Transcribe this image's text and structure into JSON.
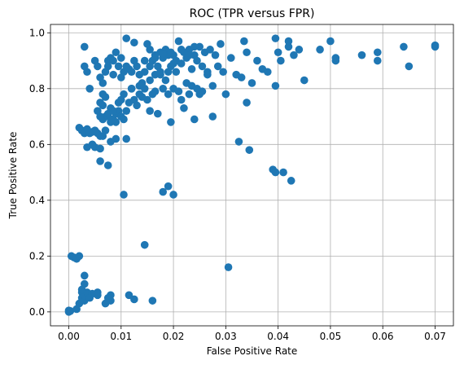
{
  "chart_data": {
    "type": "scatter",
    "title": "ROC (TPR versus FPR)",
    "xlabel": "False Positive Rate",
    "ylabel": "True Positive Rate",
    "xlim": [
      -0.0035,
      0.0735
    ],
    "ylim": [
      -0.05,
      1.03
    ],
    "xticks": [
      0.0,
      0.01,
      0.02,
      0.03,
      0.04,
      0.05,
      0.06,
      0.07
    ],
    "xtick_labels": [
      "0.00",
      "0.01",
      "0.02",
      "0.03",
      "0.04",
      "0.05",
      "0.06",
      "0.07"
    ],
    "yticks": [
      0.0,
      0.2,
      0.4,
      0.6,
      0.8,
      1.0
    ],
    "ytick_labels": [
      "0.0",
      "0.2",
      "0.4",
      "0.6",
      "0.8",
      "1.0"
    ],
    "grid": true,
    "marker_color": "#1f77b4",
    "points": [
      [
        0.0,
        0.005
      ],
      [
        0.0,
        0.0
      ],
      [
        0.0003,
        0.003
      ],
      [
        0.0005,
        0.2
      ],
      [
        0.001,
        0.195
      ],
      [
        0.0015,
        0.19
      ],
      [
        0.002,
        0.2
      ],
      [
        0.0015,
        0.01
      ],
      [
        0.002,
        0.03
      ],
      [
        0.0025,
        0.05
      ],
      [
        0.0025,
        0.07
      ],
      [
        0.003,
        0.04
      ],
      [
        0.003,
        0.06
      ],
      [
        0.0035,
        0.07
      ],
      [
        0.004,
        0.05
      ],
      [
        0.0045,
        0.065
      ],
      [
        0.0055,
        0.06
      ],
      [
        0.0055,
        0.07
      ],
      [
        0.007,
        0.03
      ],
      [
        0.008,
        0.04
      ],
      [
        0.008,
        0.06
      ],
      [
        0.0075,
        0.05
      ],
      [
        0.003,
        0.1
      ],
      [
        0.003,
        0.13
      ],
      [
        0.0025,
        0.08
      ],
      [
        0.0115,
        0.06
      ],
      [
        0.0125,
        0.045
      ],
      [
        0.016,
        0.04
      ],
      [
        0.0145,
        0.24
      ],
      [
        0.0305,
        0.16
      ],
      [
        0.002,
        0.66
      ],
      [
        0.0025,
        0.65
      ],
      [
        0.003,
        0.64
      ],
      [
        0.0035,
        0.655
      ],
      [
        0.0035,
        0.59
      ],
      [
        0.0045,
        0.645
      ],
      [
        0.005,
        0.59
      ],
      [
        0.0055,
        0.64
      ],
      [
        0.006,
        0.63
      ],
      [
        0.006,
        0.585
      ],
      [
        0.0065,
        0.63
      ],
      [
        0.0075,
        0.525
      ],
      [
        0.008,
        0.61
      ],
      [
        0.009,
        0.62
      ],
      [
        0.009,
        0.68
      ],
      [
        0.006,
        0.54
      ],
      [
        0.0065,
        0.69
      ],
      [
        0.007,
        0.7
      ],
      [
        0.007,
        0.65
      ],
      [
        0.0075,
        0.7
      ],
      [
        0.008,
        0.68
      ],
      [
        0.008,
        0.73
      ],
      [
        0.0085,
        0.69
      ],
      [
        0.009,
        0.71
      ],
      [
        0.0095,
        0.72
      ],
      [
        0.01,
        0.7
      ],
      [
        0.0105,
        0.69
      ],
      [
        0.011,
        0.62
      ],
      [
        0.006,
        0.7
      ],
      [
        0.0065,
        0.74
      ],
      [
        0.007,
        0.77
      ],
      [
        0.0075,
        0.71
      ],
      [
        0.0085,
        0.72
      ],
      [
        0.0095,
        0.75
      ],
      [
        0.01,
        0.76
      ],
      [
        0.0105,
        0.78
      ],
      [
        0.011,
        0.72
      ],
      [
        0.0115,
        0.75
      ],
      [
        0.012,
        0.8
      ],
      [
        0.0125,
        0.76
      ],
      [
        0.013,
        0.74
      ],
      [
        0.0135,
        0.78
      ],
      [
        0.014,
        0.77
      ],
      [
        0.0145,
        0.8
      ],
      [
        0.015,
        0.76
      ],
      [
        0.0155,
        0.72
      ],
      [
        0.016,
        0.78
      ],
      [
        0.0165,
        0.79
      ],
      [
        0.017,
        0.71
      ],
      [
        0.018,
        0.8
      ],
      [
        0.019,
        0.78
      ],
      [
        0.0195,
        0.68
      ],
      [
        0.02,
        0.8
      ],
      [
        0.021,
        0.79
      ],
      [
        0.0215,
        0.76
      ],
      [
        0.022,
        0.73
      ],
      [
        0.023,
        0.78
      ],
      [
        0.024,
        0.69
      ],
      [
        0.025,
        0.78
      ],
      [
        0.0275,
        0.7
      ],
      [
        0.003,
        0.88
      ],
      [
        0.0035,
        0.86
      ],
      [
        0.004,
        0.8
      ],
      [
        0.005,
        0.9
      ],
      [
        0.0055,
        0.88
      ],
      [
        0.006,
        0.84
      ],
      [
        0.0065,
        0.82
      ],
      [
        0.007,
        0.86
      ],
      [
        0.0075,
        0.9
      ],
      [
        0.008,
        0.91
      ],
      [
        0.0085,
        0.85
      ],
      [
        0.009,
        0.93
      ],
      [
        0.0095,
        0.88
      ],
      [
        0.01,
        0.84
      ],
      [
        0.0105,
        0.86
      ],
      [
        0.011,
        0.98
      ],
      [
        0.0115,
        0.87
      ],
      [
        0.012,
        0.86
      ],
      [
        0.0125,
        0.9
      ],
      [
        0.013,
        0.88
      ],
      [
        0.0135,
        0.85
      ],
      [
        0.014,
        0.82
      ],
      [
        0.0145,
        0.86
      ],
      [
        0.015,
        0.96
      ],
      [
        0.0155,
        0.88
      ],
      [
        0.016,
        0.9
      ],
      [
        0.0165,
        0.92
      ],
      [
        0.017,
        0.88
      ],
      [
        0.0175,
        0.85
      ],
      [
        0.018,
        0.91
      ],
      [
        0.0185,
        0.94
      ],
      [
        0.019,
        0.86
      ],
      [
        0.0195,
        0.88
      ],
      [
        0.02,
        0.92
      ],
      [
        0.0205,
        0.9
      ],
      [
        0.021,
        0.97
      ],
      [
        0.0215,
        0.89
      ],
      [
        0.022,
        0.93
      ],
      [
        0.0225,
        0.91
      ],
      [
        0.023,
        0.94
      ],
      [
        0.0235,
        0.87
      ],
      [
        0.024,
        0.92
      ],
      [
        0.0245,
        0.9
      ],
      [
        0.025,
        0.95
      ],
      [
        0.0255,
        0.88
      ],
      [
        0.026,
        0.93
      ],
      [
        0.0265,
        0.86
      ],
      [
        0.027,
        0.94
      ],
      [
        0.0275,
        0.81
      ],
      [
        0.028,
        0.92
      ],
      [
        0.0285,
        0.88
      ],
      [
        0.029,
        0.96
      ],
      [
        0.0295,
        0.86
      ],
      [
        0.03,
        0.78
      ],
      [
        0.031,
        0.91
      ],
      [
        0.032,
        0.85
      ],
      [
        0.0325,
        0.61
      ],
      [
        0.033,
        0.84
      ],
      [
        0.0335,
        0.97
      ],
      [
        0.034,
        0.93
      ],
      [
        0.0345,
        0.58
      ],
      [
        0.035,
        0.82
      ],
      [
        0.036,
        0.9
      ],
      [
        0.037,
        0.87
      ],
      [
        0.038,
        0.86
      ],
      [
        0.039,
        0.51
      ],
      [
        0.0395,
        0.5
      ],
      [
        0.0395,
        0.81
      ],
      [
        0.04,
        0.93
      ],
      [
        0.0405,
        0.9
      ],
      [
        0.041,
        0.5
      ],
      [
        0.042,
        0.95
      ],
      [
        0.0425,
        0.47
      ],
      [
        0.043,
        0.92
      ],
      [
        0.044,
        0.94
      ],
      [
        0.045,
        0.83
      ],
      [
        0.048,
        0.94
      ],
      [
        0.05,
        0.97
      ],
      [
        0.051,
        0.9
      ],
      [
        0.051,
        0.91
      ],
      [
        0.056,
        0.92
      ],
      [
        0.059,
        0.93
      ],
      [
        0.059,
        0.9
      ],
      [
        0.064,
        0.95
      ],
      [
        0.065,
        0.88
      ],
      [
        0.07,
        0.95
      ],
      [
        0.07,
        0.955
      ],
      [
        0.042,
        0.97
      ],
      [
        0.0395,
        0.98
      ],
      [
        0.034,
        0.75
      ],
      [
        0.02,
        0.42
      ],
      [
        0.019,
        0.45
      ],
      [
        0.018,
        0.43
      ],
      [
        0.0105,
        0.42
      ],
      [
        0.012,
        0.8
      ],
      [
        0.0135,
        0.81
      ],
      [
        0.0155,
        0.83
      ],
      [
        0.0165,
        0.85
      ],
      [
        0.0175,
        0.86
      ],
      [
        0.0185,
        0.83
      ],
      [
        0.0205,
        0.86
      ],
      [
        0.0225,
        0.82
      ],
      [
        0.0235,
        0.81
      ],
      [
        0.0245,
        0.8
      ],
      [
        0.0255,
        0.79
      ],
      [
        0.0265,
        0.85
      ],
      [
        0.0145,
        0.9
      ],
      [
        0.0155,
        0.94
      ],
      [
        0.0165,
        0.91
      ],
      [
        0.0175,
        0.93
      ],
      [
        0.019,
        0.92
      ],
      [
        0.02,
        0.89
      ],
      [
        0.0215,
        0.94
      ],
      [
        0.023,
        0.92
      ],
      [
        0.024,
        0.95
      ],
      [
        0.0195,
        0.93
      ],
      [
        0.018,
        0.925
      ],
      [
        0.0125,
        0.965
      ],
      [
        0.011,
        0.88
      ],
      [
        0.01,
        0.91
      ],
      [
        0.0085,
        0.9
      ],
      [
        0.0075,
        0.88
      ],
      [
        0.0065,
        0.78
      ],
      [
        0.006,
        0.75
      ],
      [
        0.0055,
        0.72
      ],
      [
        0.005,
        0.65
      ],
      [
        0.0045,
        0.6
      ],
      [
        0.004,
        0.64
      ],
      [
        0.003,
        0.95
      ]
    ]
  }
}
